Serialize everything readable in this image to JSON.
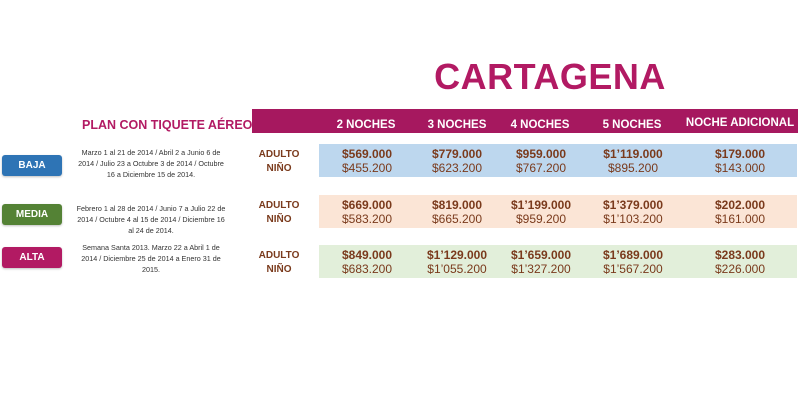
{
  "title": "CARTAGENA",
  "plan_label": "PLAN CON TIQUETE AÉREO",
  "columns": [
    "2 NOCHES",
    "3 NOCHES",
    "4 NOCHES",
    "5 NOCHES",
    "NOCHE ADICIONAL"
  ],
  "person_labels": {
    "adult": "ADULTO",
    "child": "NIÑO"
  },
  "colors": {
    "brand": "#b21a63",
    "header_bar": "#a6185f",
    "baja": "#2e74b5",
    "media": "#548235",
    "alta": "#b21a63",
    "band_baja": "#bdd7ee",
    "band_media": "#fbe5d6",
    "band_alta": "#e2efda"
  },
  "seasons": [
    {
      "name": "BAJA",
      "dates": "Marzo 1 al 21 de 2014 / Abril 2 a Junio 6 de 2014 / Julio 23 a Octubre 3 de 2014 / Octubre 16 a Diciembre 15 de 2014.",
      "adult": [
        "$569.000",
        "$779.000",
        "$959.000",
        "$1’119.000",
        "$179.000"
      ],
      "child": [
        "$455.200",
        "$623.200",
        "$767.200",
        "$895.200",
        "$143.000"
      ]
    },
    {
      "name": "MEDIA",
      "dates": "Febrero 1 al 28 de 2014 / Junio 7 a Julio 22 de 2014 / Octubre 4 al 15 de 2014 / Diciembre 16 al 24 de 2014.",
      "adult": [
        "$669.000",
        "$819.000",
        "$1’199.000",
        "$1’379.000",
        "$202.000"
      ],
      "child": [
        "$583.200",
        "$665.200",
        "$959.200",
        "$1’103.200",
        "$161.000"
      ]
    },
    {
      "name": "ALTA",
      "dates": "Semana Santa 2013. Marzo 22 a Abril 1 de 2014 / Diciembre 25 de 2014 a Enero 31 de 2015.",
      "adult": [
        "$849.000",
        "$1’129.000",
        "$1’659.000",
        "$1’689.000",
        "$283.000"
      ],
      "child": [
        "$683.200",
        "$1’055.200",
        "$1’327.200",
        "$1’567.200",
        "$226.000"
      ]
    }
  ]
}
